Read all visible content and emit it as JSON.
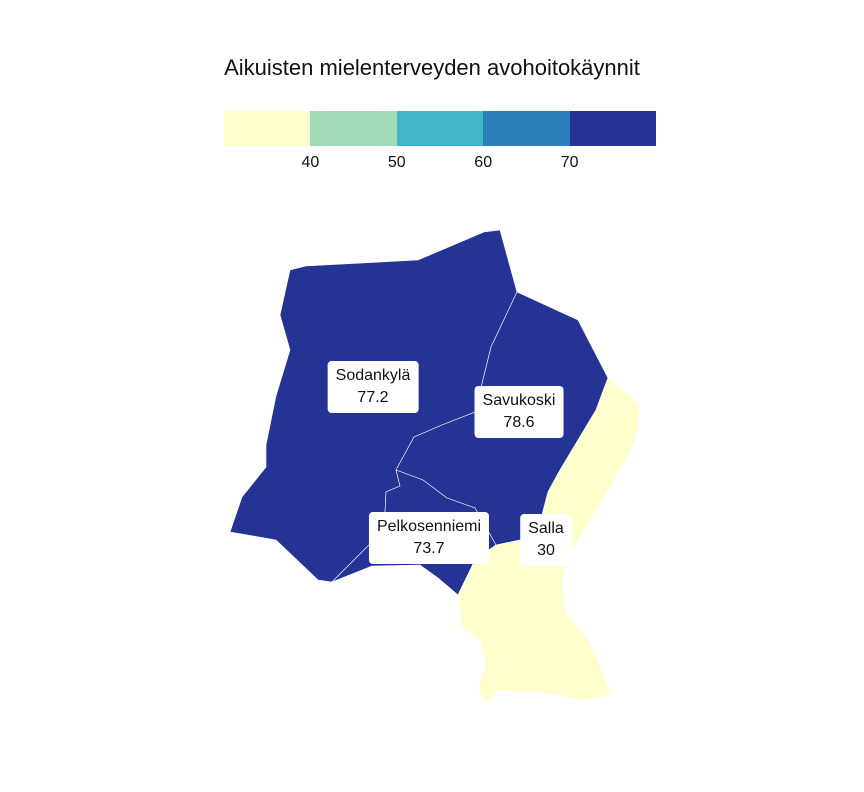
{
  "title": "Aikuisten mielenterveyden avohoitokäynnit",
  "legend": {
    "colors": [
      "#ffffcc",
      "#a1dab4",
      "#41b6c4",
      "#2c7fb8",
      "#253494"
    ],
    "ticks": [
      "40",
      "50",
      "60",
      "70"
    ]
  },
  "regions": [
    {
      "name": "Sodankylä",
      "value": "77.2",
      "color": "#253494"
    },
    {
      "name": "Savukoski",
      "value": "78.6",
      "color": "#253494"
    },
    {
      "name": "Pelkosenniemi",
      "value": "73.7",
      "color": "#253494"
    },
    {
      "name": "Salla",
      "value": "30",
      "color": "#ffffcc"
    }
  ]
}
